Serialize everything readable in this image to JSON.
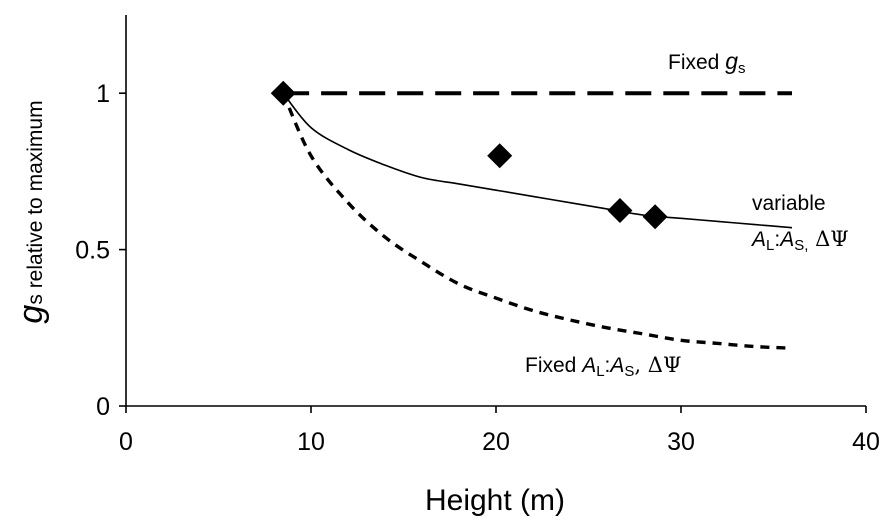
{
  "chart_data": {
    "type": "line",
    "xlabel": "Height (m)",
    "ylabel": {
      "symbol": "g",
      "subscript": "s",
      "rest": " relative to  maximum"
    },
    "xlim": [
      0,
      40
    ],
    "ylim": [
      0,
      1.25
    ],
    "xticks": [
      0,
      10,
      20,
      30,
      40
    ],
    "yticks": [
      0,
      0.5,
      1
    ],
    "xtick_labels": [
      "0",
      "10",
      "20",
      "30",
      "40"
    ],
    "ytick_labels": [
      "0",
      "0.5",
      "1"
    ],
    "grid": false,
    "series": [
      {
        "style": "dashed-long",
        "x": [
          8.5,
          36
        ],
        "y": [
          1.0,
          1.0
        ]
      },
      {
        "style": "solid",
        "x": [
          8.5,
          10,
          12,
          14,
          16,
          18,
          20,
          22,
          24,
          26,
          28,
          30,
          32,
          34,
          36
        ],
        "y": [
          1.0,
          0.89,
          0.82,
          0.77,
          0.73,
          0.71,
          0.69,
          0.67,
          0.65,
          0.63,
          0.61,
          0.6,
          0.59,
          0.58,
          0.57
        ]
      },
      {
        "style": "dotted",
        "x": [
          8.5,
          10,
          12,
          14,
          16,
          18,
          20,
          22,
          24,
          26,
          28,
          30,
          32,
          34,
          36
        ],
        "y": [
          1.0,
          0.8,
          0.65,
          0.54,
          0.46,
          0.39,
          0.345,
          0.305,
          0.275,
          0.25,
          0.23,
          0.21,
          0.2,
          0.19,
          0.185
        ]
      },
      {
        "style": "markers-diamond",
        "x": [
          8.5,
          20.2,
          26.7,
          28.6
        ],
        "y": [
          1.0,
          0.8,
          0.625,
          0.605
        ]
      }
    ],
    "annotations": {
      "fixed_gs": {
        "prefix": "Fixed ",
        "symbol": "g",
        "subscript": "s"
      },
      "variable": {
        "line1": "variable",
        "a1": "A",
        "s1": "L",
        "colon": ":",
        "a2": "A",
        "s2": "S,",
        "delta": " ΔΨ"
      },
      "fixed_al": {
        "prefix": "Fixed ",
        "a1": "A",
        "s1": "L",
        "colon": ":",
        "a2": "A",
        "s2": "S",
        "delta": ", ΔΨ"
      }
    }
  }
}
